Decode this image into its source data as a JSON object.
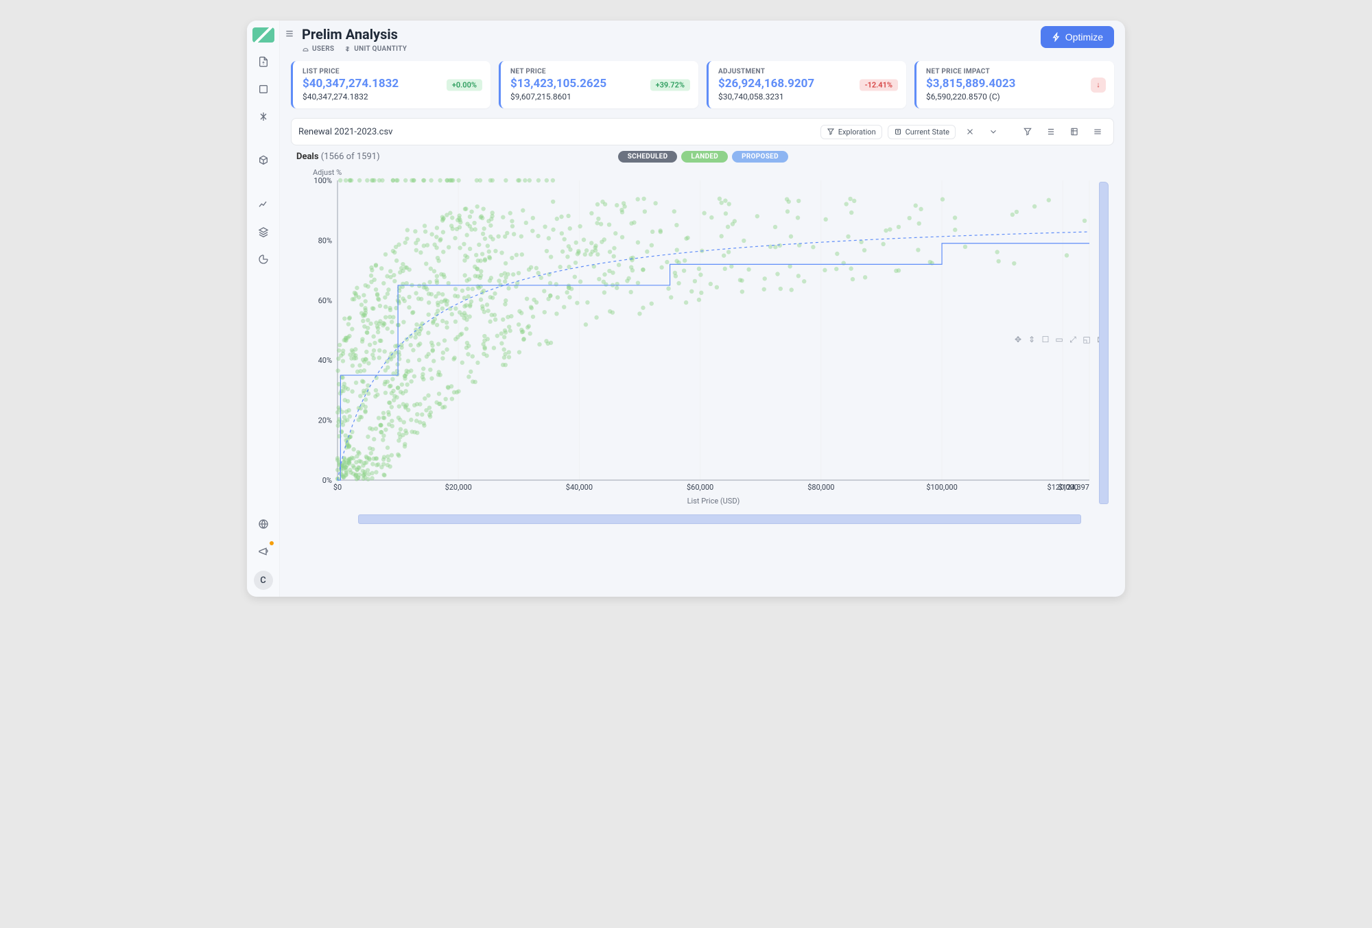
{
  "page": {
    "title": "Prelim Analysis"
  },
  "meta": {
    "users": "USERS",
    "unit": "UNIT QUANTITY"
  },
  "optimize": {
    "label": "Optimize"
  },
  "cards": [
    {
      "label": "LIST PRICE",
      "value": "$40,347,274.1832",
      "sub": "$40,347,274.1832",
      "badge": "+0.00%",
      "badge_class": "badge-green"
    },
    {
      "label": "NET PRICE",
      "value": "$13,423,105.2625",
      "sub": "$9,607,215.8601",
      "badge": "+39.72%",
      "badge_class": "badge-green"
    },
    {
      "label": "ADJUSTMENT",
      "value": "$26,924,168.9207",
      "sub": "$30,740,058.3231",
      "badge": "-12.41%",
      "badge_class": "badge-red"
    },
    {
      "label": "NET PRICE IMPACT",
      "value": "$3,815,889.4023",
      "sub": "$6,590,220.8570 (C)",
      "badge": "↓",
      "badge_class": "badge-red badge-red-icon"
    }
  ],
  "toolbar": {
    "file": "Renewal 2021-2023.csv",
    "exploration": "Exploration",
    "state": "Current State"
  },
  "deals": {
    "prefix": "Deals",
    "count": "(1566 of 1591)"
  },
  "seg": {
    "scheduled": "SCHEDULED",
    "landed": "LANDED",
    "proposed": "PROPOSED"
  },
  "avatar": "C",
  "chart": {
    "type": "scatter",
    "y_axis_title": "Adjust %",
    "x_axis_title": "List Price (USD)",
    "xlim": [
      0,
      124397
    ],
    "ylim": [
      0,
      100
    ],
    "xticks": [
      0,
      20000,
      40000,
      60000,
      80000,
      100000,
      120000,
      124397
    ],
    "xtick_labels": [
      "$0",
      "$20,000",
      "$40,000",
      "$60,000",
      "$80,000",
      "$100,000",
      "$120,000",
      "$124,397"
    ],
    "yticks": [
      0,
      20,
      40,
      60,
      80,
      100
    ],
    "ytick_labels": [
      "0%",
      "20%",
      "40%",
      "60%",
      "80%",
      "100%"
    ],
    "scatter_color": "#8ed28a",
    "scatter_radius": 3.2,
    "step_color": "#5f8df8",
    "dash_color": "#5f8df8",
    "grid_color": "#f0f1f3",
    "axis_color": "#9ca3af",
    "step_points": [
      [
        0,
        0
      ],
      [
        500,
        0
      ],
      [
        500,
        35
      ],
      [
        10000,
        35
      ],
      [
        10000,
        65
      ],
      [
        55000,
        65
      ],
      [
        55000,
        72
      ],
      [
        100000,
        72
      ],
      [
        100000,
        79
      ],
      [
        124397,
        79
      ]
    ],
    "dash_curve": {
      "a": 90,
      "b": 0.9,
      "x_half": 12000
    },
    "scatter_seed": 42,
    "scatter_n": 1050,
    "scatter_lambda_x": 22000
  }
}
